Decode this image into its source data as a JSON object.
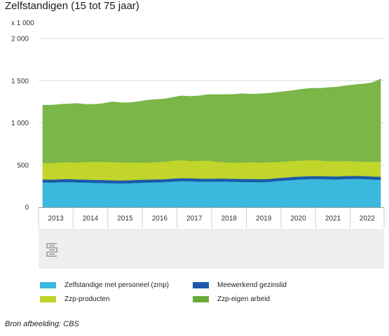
{
  "header": {
    "title": "Zelfstandigen (15 tot 75 jaar)",
    "unit": "x 1 000"
  },
  "footer": {
    "source": "Bron afbeelding: CBS"
  },
  "logo": {
    "icon": "cbs-logo-icon"
  },
  "colors": {
    "zmp": "#3bb8dd",
    "gezinslid": "#1a5aa8",
    "producten": "#c1d52a",
    "eigen": "#7ab648",
    "eigen_legend": "#6aab3c",
    "grid": "#dcdcdc",
    "panel": "#efefef"
  },
  "chart_data": {
    "type": "area",
    "stacked": true,
    "title": "Zelfstandigen (15 tot 75 jaar)",
    "unit_label": "x 1 000",
    "ylim": [
      0,
      2000
    ],
    "yticks": [
      0,
      500,
      1000,
      1500,
      2000
    ],
    "ytick_labels": [
      "0",
      "500",
      "1 000",
      "1 500",
      "2 000"
    ],
    "xlabels": [
      "2013",
      "2014",
      "2015",
      "2016",
      "2017",
      "2018",
      "2019",
      "2020",
      "2021",
      "2022"
    ],
    "grid": true,
    "legend_position": "bottom",
    "x": [
      "2013Q1",
      "2013Q2",
      "2013Q3",
      "2013Q4",
      "2014Q1",
      "2014Q2",
      "2014Q3",
      "2014Q4",
      "2015Q1",
      "2015Q2",
      "2015Q3",
      "2015Q4",
      "2016Q1",
      "2016Q2",
      "2016Q3",
      "2016Q4",
      "2017Q1",
      "2017Q2",
      "2017Q3",
      "2017Q4",
      "2018Q1",
      "2018Q2",
      "2018Q3",
      "2018Q4",
      "2019Q1",
      "2019Q2",
      "2019Q3",
      "2019Q4",
      "2020Q1",
      "2020Q2",
      "2020Q3",
      "2020Q4",
      "2021Q1",
      "2021Q2",
      "2021Q3",
      "2021Q4",
      "2022Q1",
      "2022Q2",
      "2022Q3",
      "2022Q4"
    ],
    "series": [
      {
        "name": "Zelfstandige met personeel (zmp)",
        "color": "#3bb8dd",
        "values": [
          295,
          293,
          298,
          300,
          295,
          293,
          290,
          288,
          285,
          283,
          285,
          290,
          293,
          295,
          298,
          305,
          310,
          308,
          305,
          303,
          305,
          305,
          303,
          300,
          300,
          298,
          300,
          310,
          318,
          325,
          330,
          335,
          335,
          332,
          330,
          335,
          338,
          335,
          330,
          325
        ]
      },
      {
        "name": "Meewerkend gezinslid",
        "color": "#1a5aa8",
        "values": [
          35,
          36,
          35,
          36,
          35,
          36,
          35,
          36,
          35,
          36,
          35,
          36,
          35,
          36,
          35,
          36,
          35,
          36,
          35,
          36,
          35,
          36,
          35,
          36,
          35,
          36,
          35,
          36,
          35,
          36,
          35,
          36,
          35,
          36,
          35,
          36,
          35,
          36,
          35,
          36
        ]
      },
      {
        "name": "Zzp-producten",
        "color": "#c1d52a",
        "values": [
          195,
          195,
          200,
          200,
          200,
          210,
          215,
          215,
          215,
          213,
          213,
          205,
          200,
          205,
          208,
          210,
          215,
          205,
          210,
          215,
          200,
          195,
          190,
          195,
          200,
          195,
          200,
          190,
          190,
          190,
          190,
          190,
          185,
          180,
          180,
          180,
          170,
          170,
          175,
          180
        ]
      },
      {
        "name": "Zzp-eigen arbeid",
        "color": "#7ab648",
        "values": [
          685,
          686,
          687,
          689,
          700,
          680,
          680,
          691,
          715,
          708,
          706,
          720,
          740,
          740,
          742,
          750,
          760,
          765,
          770,
          780,
          795,
          800,
          810,
          815,
          805,
          815,
          815,
          825,
          830,
          835,
          845,
          850,
          855,
          870,
          880,
          890,
          910,
          920,
          935,
          980
        ]
      }
    ]
  },
  "legend": {
    "items": [
      {
        "label": "Zelfstandige met personeel (zmp)",
        "color": "#3bb8dd"
      },
      {
        "label": "Meewerkend gezinslid",
        "color": "#1a5aa8"
      },
      {
        "label": "Zzp-producten",
        "color": "#c1d52a"
      },
      {
        "label": "Zzp-eigen arbeid",
        "color": "#6aab3c"
      }
    ]
  }
}
